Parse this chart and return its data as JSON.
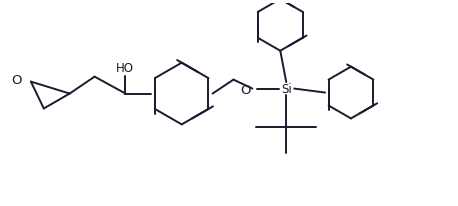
{
  "bg_color": "#ffffff",
  "line_color": "#1a1a2e",
  "line_width": 1.4,
  "font_size": 8.5,
  "figure_width": 4.58,
  "figure_height": 2.07,
  "dpi": 100,
  "xlim": [
    0,
    9.2
  ],
  "ylim": [
    0,
    4.0
  ]
}
